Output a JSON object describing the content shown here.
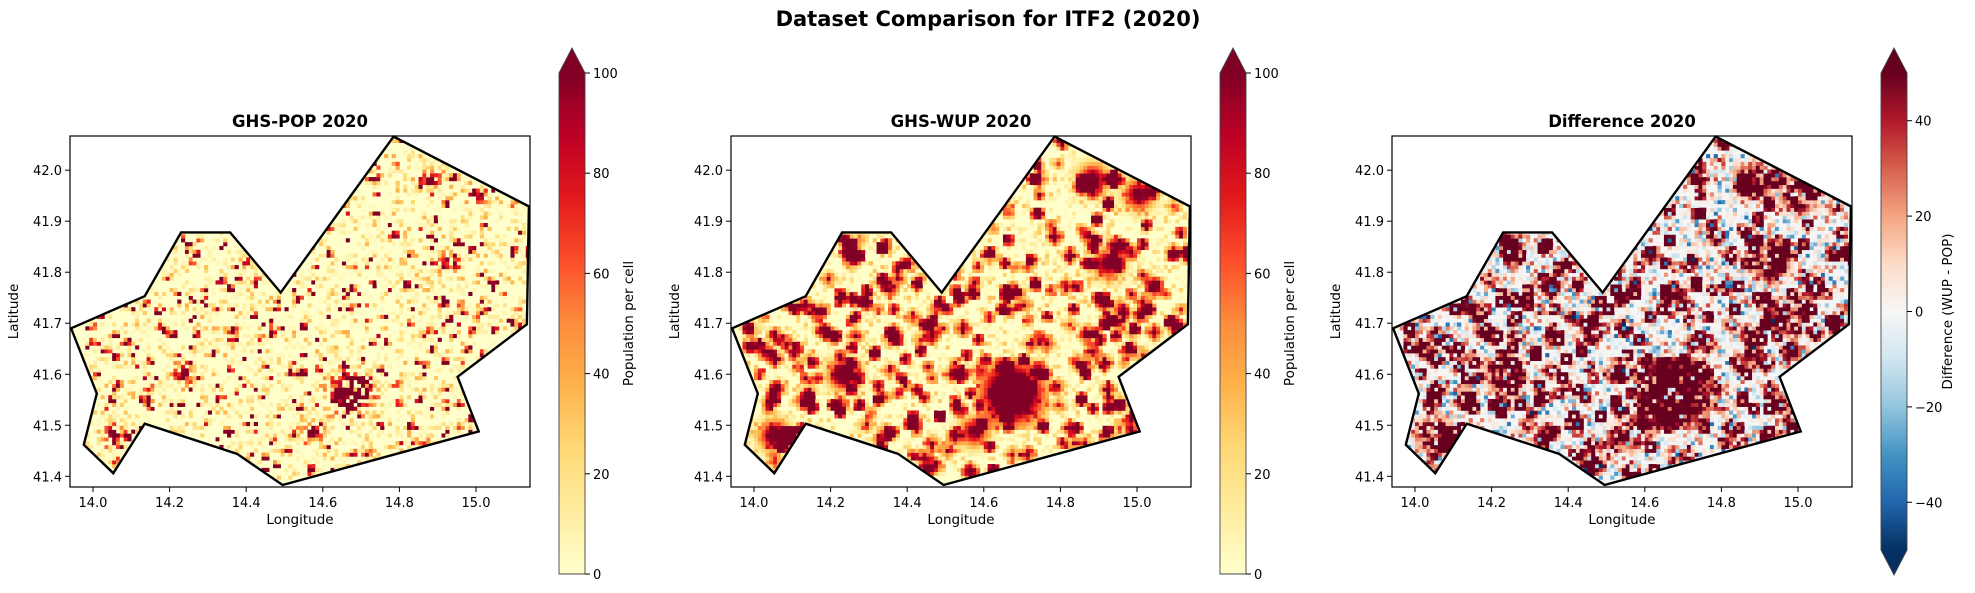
{
  "chart_data": {
    "title": "Dataset Comparison for ITF2 (2020)",
    "panels": [
      {
        "type": "heatmap",
        "title": "GHS-POP 2020",
        "xlabel": "Longitude",
        "ylabel": "Latitude",
        "colormap": "YlOrRd",
        "colorbar_label": "Population per cell",
        "clim": [
          0,
          100
        ],
        "colorbar_extend": "max",
        "colorbar_ticks": [
          "0",
          "20",
          "40",
          "60",
          "80",
          "100"
        ]
      },
      {
        "type": "heatmap",
        "title": "GHS-WUP 2020",
        "xlabel": "Longitude",
        "ylabel": "Latitude",
        "colormap": "YlOrRd",
        "colorbar_label": "Population per cell",
        "clim": [
          0,
          100
        ],
        "colorbar_extend": "max",
        "colorbar_ticks": [
          "0",
          "20",
          "40",
          "60",
          "80",
          "100"
        ]
      },
      {
        "type": "heatmap",
        "title": "Difference 2020",
        "xlabel": "Longitude",
        "ylabel": "Latitude",
        "colormap": "RdBu_r",
        "colorbar_label": "Difference (WUP - POP)",
        "clim": [
          -50,
          50
        ],
        "colorbar_extend": "both",
        "colorbar_ticks": [
          "−40",
          "−20",
          "0",
          "20",
          "40"
        ]
      }
    ],
    "xlim": [
      13.94,
      15.141
    ],
    "ylim": [
      41.379,
      42.067
    ],
    "xticks": [
      "14.0",
      "14.2",
      "14.4",
      "14.6",
      "14.8",
      "15.0"
    ],
    "yticks": [
      "41.4",
      "41.5",
      "41.6",
      "41.7",
      "41.8",
      "41.9",
      "42.0"
    ],
    "grid": false,
    "boundary_polygon": [
      [
        13.943,
        41.69
      ],
      [
        14.135,
        41.753
      ],
      [
        14.23,
        41.878
      ],
      [
        14.358,
        41.878
      ],
      [
        14.49,
        41.76
      ],
      [
        14.785,
        42.066
      ],
      [
        15.138,
        41.929
      ],
      [
        15.133,
        41.698
      ],
      [
        14.952,
        41.595
      ],
      [
        15.007,
        41.488
      ],
      [
        14.495,
        41.383
      ],
      [
        14.376,
        41.444
      ],
      [
        14.135,
        41.503
      ],
      [
        14.053,
        41.406
      ],
      [
        13.976,
        41.462
      ],
      [
        14.01,
        41.562
      ]
    ],
    "major_hotspots": [
      {
        "lon": 14.67,
        "lat": 41.56,
        "pop": 150
      },
      {
        "lon": 14.23,
        "lat": 41.6,
        "pop": 120
      },
      {
        "lon": 14.05,
        "lat": 41.48,
        "pop": 110
      },
      {
        "lon": 14.92,
        "lat": 41.82,
        "pop": 100
      },
      {
        "lon": 14.88,
        "lat": 41.98,
        "pop": 100
      },
      {
        "lon": 15.0,
        "lat": 41.95,
        "pop": 100
      },
      {
        "lon": 14.57,
        "lat": 41.49,
        "pop": 90
      }
    ],
    "colors": {
      "YlOrRd": [
        "#ffffcc",
        "#ffeda0",
        "#fed976",
        "#feb24c",
        "#fd8d3c",
        "#fc4e2a",
        "#e31a1c",
        "#bd0026",
        "#800026"
      ],
      "RdBu_r": [
        "#053061",
        "#2166ac",
        "#4393c3",
        "#92c5de",
        "#d1e5f0",
        "#f7f7f7",
        "#fddbc7",
        "#f4a582",
        "#d6604d",
        "#b2182b",
        "#67001f"
      ],
      "boundary": "#000000"
    }
  }
}
